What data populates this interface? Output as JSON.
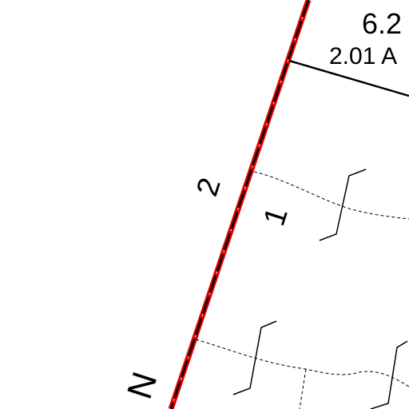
{
  "labels": {
    "area": "6.2",
    "acres": "2.01 A",
    "lot_2": "2",
    "lot_1": "1",
    "road": "N"
  }
}
